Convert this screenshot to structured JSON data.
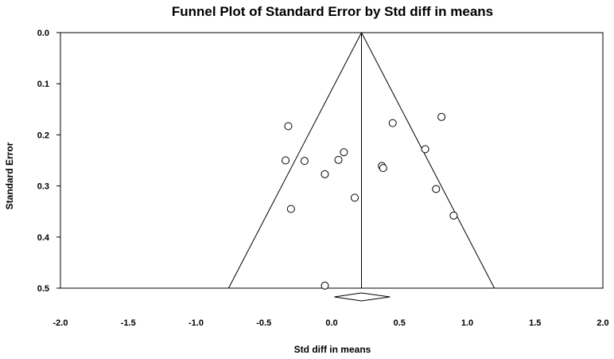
{
  "chart_data": {
    "type": "scatter",
    "title": "Funnel Plot of Standard Error by Std diff in means",
    "xlabel": "Std diff in means",
    "ylabel": "Standard Error",
    "xlim": [
      -2.0,
      2.0
    ],
    "ylim": [
      0.0,
      0.5
    ],
    "y_axis_inverted": true,
    "x_ticks": [
      "-2.0",
      "-1.5",
      "-1.0",
      "-0.5",
      "0.0",
      "0.5",
      "1.0",
      "1.5",
      "2.0"
    ],
    "y_ticks": [
      "0.0",
      "0.1",
      "0.2",
      "0.3",
      "0.4",
      "0.5"
    ],
    "grid": false,
    "summary_effect": 0.22,
    "funnel_lines": true,
    "summary_diamond": {
      "center": 0.22,
      "lower": 0.02,
      "upper": 0.43,
      "se": 0.5
    },
    "points": [
      {
        "x": -0.32,
        "y": 0.183
      },
      {
        "x": -0.34,
        "y": 0.25
      },
      {
        "x": -0.2,
        "y": 0.251
      },
      {
        "x": -0.3,
        "y": 0.345
      },
      {
        "x": -0.05,
        "y": 0.277
      },
      {
        "x": 0.05,
        "y": 0.249
      },
      {
        "x": 0.09,
        "y": 0.234
      },
      {
        "x": 0.17,
        "y": 0.323
      },
      {
        "x": -0.05,
        "y": 0.495
      },
      {
        "x": 0.45,
        "y": 0.177
      },
      {
        "x": 0.37,
        "y": 0.261
      },
      {
        "x": 0.38,
        "y": 0.265
      },
      {
        "x": 0.69,
        "y": 0.228
      },
      {
        "x": 0.81,
        "y": 0.165
      },
      {
        "x": 0.77,
        "y": 0.306
      },
      {
        "x": 0.9,
        "y": 0.358
      }
    ]
  }
}
